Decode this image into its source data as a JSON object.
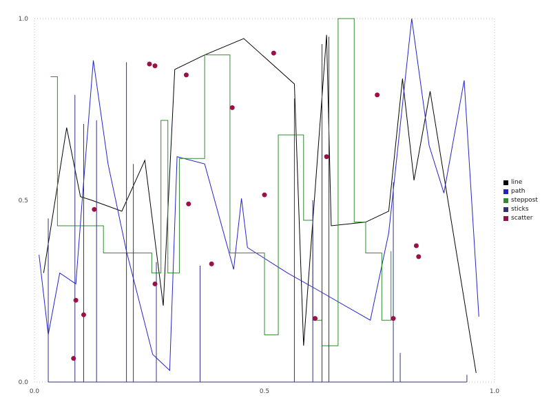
{
  "chart_data": {
    "type": "mixed",
    "title": "",
    "xlabel": "",
    "ylabel": "",
    "xlim": [
      0,
      1
    ],
    "ylim": [
      0,
      1
    ],
    "x_tick_labels": [
      "0.0",
      "0.5",
      "1.0"
    ],
    "y_tick_labels": [
      "0.0",
      "0.5",
      "1.0"
    ],
    "grid": false,
    "border_style": "dotted",
    "border_color": "#bbbbbb",
    "tick_label_color": "#444444",
    "legend_position": "right-outside",
    "series": [
      {
        "name": "line",
        "type": "line",
        "color": "#000000",
        "points": [
          [
            0.02,
            0.3
          ],
          [
            0.07,
            0.7
          ],
          [
            0.1,
            0.51
          ],
          [
            0.125,
            0.5
          ],
          [
            0.19,
            0.47
          ],
          [
            0.24,
            0.61
          ],
          [
            0.28,
            0.21
          ],
          [
            0.305,
            0.86
          ],
          [
            0.37,
            0.9
          ],
          [
            0.455,
            0.945
          ],
          [
            0.565,
            0.82
          ],
          [
            0.585,
            0.1
          ],
          [
            0.635,
            0.955
          ],
          [
            0.645,
            0.43
          ],
          [
            0.72,
            0.44
          ],
          [
            0.77,
            0.47
          ],
          [
            0.8,
            0.835
          ],
          [
            0.825,
            0.555
          ],
          [
            0.86,
            0.8
          ],
          [
            0.96,
            0.025
          ]
        ]
      },
      {
        "name": "path",
        "type": "line",
        "color": "#2222cc",
        "points": [
          [
            0.01,
            0.35
          ],
          [
            0.03,
            0.13
          ],
          [
            0.055,
            0.3
          ],
          [
            0.09,
            0.27
          ],
          [
            0.105,
            0.52
          ],
          [
            0.128,
            0.885
          ],
          [
            0.16,
            0.6
          ],
          [
            0.2,
            0.36
          ],
          [
            0.257,
            0.076
          ],
          [
            0.294,
            0.032
          ],
          [
            0.31,
            0.62
          ],
          [
            0.37,
            0.6
          ],
          [
            0.433,
            0.31
          ],
          [
            0.45,
            0.505
          ],
          [
            0.463,
            0.37
          ],
          [
            0.55,
            0.3
          ],
          [
            0.62,
            0.25
          ],
          [
            0.73,
            0.17
          ],
          [
            0.77,
            0.41
          ],
          [
            0.82,
            1.0
          ],
          [
            0.858,
            0.65
          ],
          [
            0.89,
            0.52
          ],
          [
            0.934,
            0.83
          ],
          [
            0.966,
            0.18
          ]
        ]
      },
      {
        "name": "steppost",
        "type": "step-post",
        "color": "#2e8b2e",
        "points": [
          [
            0.035,
            0.84
          ],
          [
            0.05,
            0.43
          ],
          [
            0.15,
            0.355
          ],
          [
            0.255,
            0.3
          ],
          [
            0.275,
            0.72
          ],
          [
            0.29,
            0.3
          ],
          [
            0.315,
            0.615
          ],
          [
            0.37,
            0.9
          ],
          [
            0.425,
            0.355
          ],
          [
            0.5,
            0.13
          ],
          [
            0.53,
            0.68
          ],
          [
            0.585,
            0.445
          ],
          [
            0.605,
            0.17
          ],
          [
            0.625,
            0.1
          ],
          [
            0.66,
            1.0
          ],
          [
            0.695,
            0.44
          ],
          [
            0.72,
            0.355
          ],
          [
            0.755,
            0.17
          ],
          [
            0.775,
            0.36
          ]
        ]
      },
      {
        "name": "sticks",
        "type": "sticks",
        "color": "#30307f",
        "points": [
          [
            0.03,
            0.45
          ],
          [
            0.088,
            0.79
          ],
          [
            0.107,
            0.71
          ],
          [
            0.135,
            0.72
          ],
          [
            0.2,
            0.88
          ],
          [
            0.215,
            0.6
          ],
          [
            0.265,
            0.33
          ],
          [
            0.36,
            0.32
          ],
          [
            0.565,
            0.78
          ],
          [
            0.605,
            0.5
          ],
          [
            0.625,
            0.93
          ],
          [
            0.64,
            0.95
          ],
          [
            0.78,
            0.55
          ],
          [
            0.795,
            0.08
          ],
          [
            0.94,
            0.02
          ]
        ]
      },
      {
        "name": "scatter",
        "type": "scatter",
        "color": "#9b1048",
        "points": [
          [
            0.085,
            0.065
          ],
          [
            0.09,
            0.225
          ],
          [
            0.107,
            0.185
          ],
          [
            0.13,
            0.475
          ],
          [
            0.25,
            0.875
          ],
          [
            0.262,
            0.87
          ],
          [
            0.262,
            0.27
          ],
          [
            0.33,
            0.845
          ],
          [
            0.335,
            0.49
          ],
          [
            0.385,
            0.325
          ],
          [
            0.43,
            0.755
          ],
          [
            0.5,
            0.515
          ],
          [
            0.52,
            0.905
          ],
          [
            0.61,
            0.175
          ],
          [
            0.635,
            0.62
          ],
          [
            0.745,
            0.79
          ],
          [
            0.78,
            0.175
          ],
          [
            0.83,
            0.375
          ],
          [
            0.835,
            0.345
          ]
        ]
      }
    ]
  }
}
